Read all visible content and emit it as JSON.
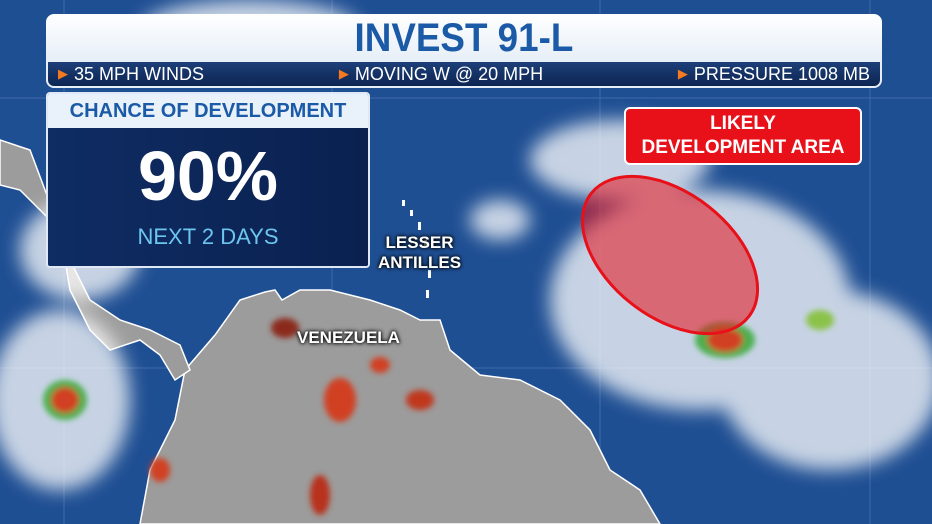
{
  "header": {
    "title": "INVEST 91-L",
    "stats": [
      {
        "label": "35 MPH WINDS"
      },
      {
        "label": "MOVING W @ 20 MPH"
      },
      {
        "label": "PRESSURE 1008 MB"
      }
    ]
  },
  "chance_box": {
    "heading": "CHANCE OF DEVELOPMENT",
    "percent": "90%",
    "period": "NEXT 2 DAYS"
  },
  "callout": {
    "line1": "LIKELY",
    "line2": "DEVELOPMENT AREA"
  },
  "map_labels": {
    "lesser_antilles_1": "LESSER",
    "lesser_antilles_2": "ANTILLES",
    "venezuela": "VENEZUELA"
  },
  "colors": {
    "ocean": "#1f4f93",
    "land": "#9a9a9a",
    "development_area": "#e8111a",
    "title": "#1b5aa6",
    "accent": "#f47a20"
  }
}
